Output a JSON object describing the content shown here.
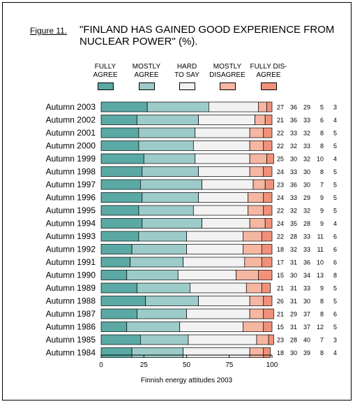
{
  "figure": {
    "label": "Figure 11.",
    "title": "\"FINLAND HAS GAINED GOOD EXPERIENCE FROM\nNUCLEAR POWER\" (%)."
  },
  "legend": [
    {
      "label": "FULLY\nAGREE",
      "color": "#5aa9a5"
    },
    {
      "label": "MOSTLY\nAGREE",
      "color": "#9ccbc9"
    },
    {
      "label": "HARD\nTO SAY",
      "color": "#f2f2f2"
    },
    {
      "label": "MOSTLY\nDISAGREE",
      "color": "#f5b6a2"
    },
    {
      "label": "FULLY DIS-\nAGREE",
      "color": "#f2917a"
    }
  ],
  "chart_data": {
    "type": "bar",
    "orientation": "horizontal-stacked",
    "categories": [
      "Autumn 2003",
      "Autumn 2002",
      "Autumn 2001",
      "Autumn 2000",
      "Autumn 1999",
      "Autumn 1998",
      "Autumn 1997",
      "Autumn 1996",
      "Autumn 1995",
      "Autumn 1994",
      "Autumn 1993",
      "Autumn 1992",
      "Autumn 1991",
      "Autumn 1990",
      "Autumn 1989",
      "Autumn 1988",
      "Autumn 1987",
      "Autumn 1986",
      "Autumn 1985",
      "Autumn 1984"
    ],
    "series": [
      {
        "name": "FULLY AGREE",
        "values": [
          27,
          21,
          22,
          22,
          25,
          24,
          23,
          24,
          22,
          24,
          22,
          18,
          17,
          15,
          21,
          26,
          21,
          15,
          23,
          18
        ]
      },
      {
        "name": "MOSTLY AGREE",
        "values": [
          36,
          36,
          33,
          32,
          30,
          33,
          36,
          33,
          32,
          35,
          28,
          32,
          31,
          30,
          31,
          31,
          29,
          31,
          28,
          30
        ]
      },
      {
        "name": "HARD TO SAY",
        "values": [
          29,
          33,
          32,
          33,
          32,
          30,
          30,
          29,
          32,
          28,
          33,
          33,
          36,
          34,
          33,
          30,
          37,
          37,
          40,
          39
        ]
      },
      {
        "name": "MOSTLY DISAGREE",
        "values": [
          5,
          6,
          8,
          8,
          10,
          8,
          7,
          9,
          9,
          9,
          11,
          11,
          10,
          13,
          9,
          8,
          8,
          12,
          7,
          8
        ]
      },
      {
        "name": "FULLY DISAGREE",
        "values": [
          3,
          4,
          5,
          5,
          4,
          5,
          5,
          5,
          5,
          4,
          6,
          6,
          6,
          8,
          5,
          5,
          6,
          5,
          3,
          4
        ]
      }
    ],
    "xlim": [
      0,
      100
    ],
    "xticks": [
      0,
      25,
      50,
      75,
      100
    ],
    "xlabel": "Finnish energy attitudes 2003",
    "legend_position": "top"
  }
}
